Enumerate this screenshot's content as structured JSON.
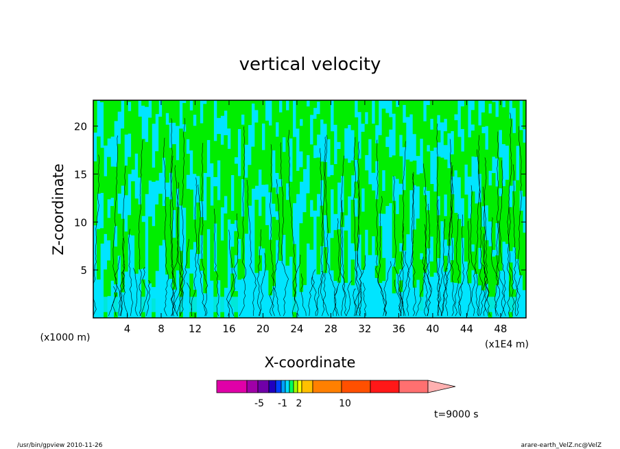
{
  "chart_data": {
    "type": "heatmap",
    "title": "vertical velocity",
    "xlabel": "X-coordinate",
    "ylabel": "Z-coordinate",
    "x_unit_label": "(x1E4 m)",
    "y_unit_label": "(x1000 m)",
    "x_ticks": [
      "4",
      "8",
      "12",
      "16",
      "20",
      "24",
      "28",
      "32",
      "36",
      "40",
      "44",
      "48"
    ],
    "y_ticks": [
      "5",
      "10",
      "15",
      "20"
    ],
    "xlim": [
      0,
      51
    ],
    "ylim": [
      0,
      22.7
    ],
    "colorbar": {
      "labels": [
        "-5",
        "-1",
        "2",
        "10"
      ],
      "colors": [
        "#e000a8",
        "#a000a8",
        "#7000a8",
        "#2000c0",
        "#0040ff",
        "#00a0ff",
        "#00e0ff",
        "#00ff60",
        "#a0ff00",
        "#ffff00",
        "#ffc000",
        "#ff8000",
        "#ff5000",
        "#ff1818",
        "#ff7070",
        "#ffb0b0"
      ]
    },
    "field_colors": {
      "negative": "#00e5ff",
      "positive": "#00ee00",
      "contour": "#000000"
    },
    "time_label": "t=9000 s"
  },
  "footer": {
    "left": "/usr/bin/gpview   2010-11-26",
    "right": "arare-earth_VelZ.nc@VelZ"
  }
}
